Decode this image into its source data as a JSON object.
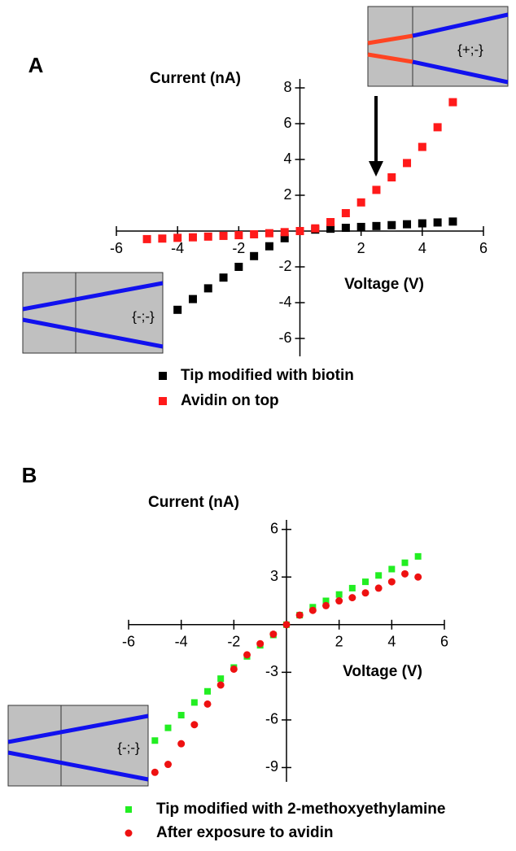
{
  "chart_data": [
    {
      "type": "scatter",
      "panel_label": "A",
      "y_label": "Current (nA)",
      "x_label": "Voltage (V)",
      "xlim": [
        -6,
        6
      ],
      "ylim": [
        -7,
        8.5
      ],
      "xticks": [
        -6,
        -4,
        -2,
        2,
        4,
        6
      ],
      "yticks": [
        8,
        6,
        4,
        2,
        -2,
        -4,
        -6
      ],
      "annotations": [
        "{+;-}",
        "{-;-}"
      ],
      "series": [
        {
          "name": "Tip modified with biotin",
          "color": "#000000",
          "marker": "square",
          "x": [
            -4,
            -3.5,
            -3,
            -2.5,
            -2,
            -1.5,
            -1,
            -0.5,
            0,
            0.5,
            1,
            1.5,
            2,
            2.5,
            3,
            3.5,
            4,
            4.5,
            5
          ],
          "values": [
            -4.4,
            -3.8,
            -3.2,
            -2.6,
            -2.0,
            -1.4,
            -0.85,
            -0.4,
            0,
            0.08,
            0.13,
            0.18,
            0.23,
            0.28,
            0.33,
            0.38,
            0.43,
            0.48,
            0.53
          ]
        },
        {
          "name": "Avidin on top",
          "color": "#ff1a1a",
          "marker": "square",
          "x": [
            -5,
            -4.5,
            -4,
            -3.5,
            -3,
            -2.5,
            -2,
            -1.5,
            -1,
            -0.5,
            0,
            0.5,
            1,
            1.5,
            2,
            2.5,
            3,
            3.5,
            4,
            4.5,
            5
          ],
          "values": [
            -0.45,
            -0.42,
            -0.38,
            -0.35,
            -0.31,
            -0.27,
            -0.23,
            -0.18,
            -0.12,
            -0.06,
            0,
            0.15,
            0.5,
            1.0,
            1.6,
            2.3,
            3.0,
            3.8,
            4.7,
            5.8,
            7.2
          ]
        }
      ]
    },
    {
      "type": "scatter",
      "panel_label": "B",
      "y_label": "Current (nA)",
      "x_label": "Voltage (V)",
      "xlim": [
        -6,
        6
      ],
      "ylim": [
        -9.9,
        6.6
      ],
      "xticks": [
        -6,
        -4,
        -2,
        2,
        4,
        6
      ],
      "yticks": [
        6,
        3,
        -3,
        -6,
        -9
      ],
      "annotations": [
        "{-;-}"
      ],
      "series": [
        {
          "name": "Tip modified with 2-methoxyethylamine",
          "color": "#22ee22",
          "marker": "square",
          "x": [
            -5,
            -4.5,
            -4,
            -3.5,
            -3,
            -2.5,
            -2,
            -1.5,
            -1,
            -0.5,
            0,
            0.5,
            1,
            1.5,
            2,
            2.5,
            3,
            3.5,
            4,
            4.5,
            5
          ],
          "values": [
            -7.3,
            -6.5,
            -5.7,
            -4.9,
            -4.2,
            -3.4,
            -2.7,
            -2.0,
            -1.3,
            -0.65,
            0,
            0.6,
            1.1,
            1.5,
            1.9,
            2.3,
            2.7,
            3.1,
            3.5,
            3.9,
            4.3
          ]
        },
        {
          "name": "After exposure to avidin",
          "color": "#ee1111",
          "marker": "circle",
          "x": [
            -5,
            -4.5,
            -4,
            -3.5,
            -3,
            -2.5,
            -2,
            -1.5,
            -1,
            -0.5,
            0,
            0.5,
            1,
            1.5,
            2,
            2.5,
            3,
            3.5,
            4,
            4.5,
            5
          ],
          "values": [
            -9.3,
            -8.8,
            -7.5,
            -6.3,
            -5.0,
            -3.8,
            -2.8,
            -1.9,
            -1.2,
            -0.6,
            0,
            0.6,
            0.9,
            1.2,
            1.5,
            1.7,
            2.0,
            2.3,
            2.7,
            3.2,
            3.0
          ]
        }
      ]
    }
  ]
}
